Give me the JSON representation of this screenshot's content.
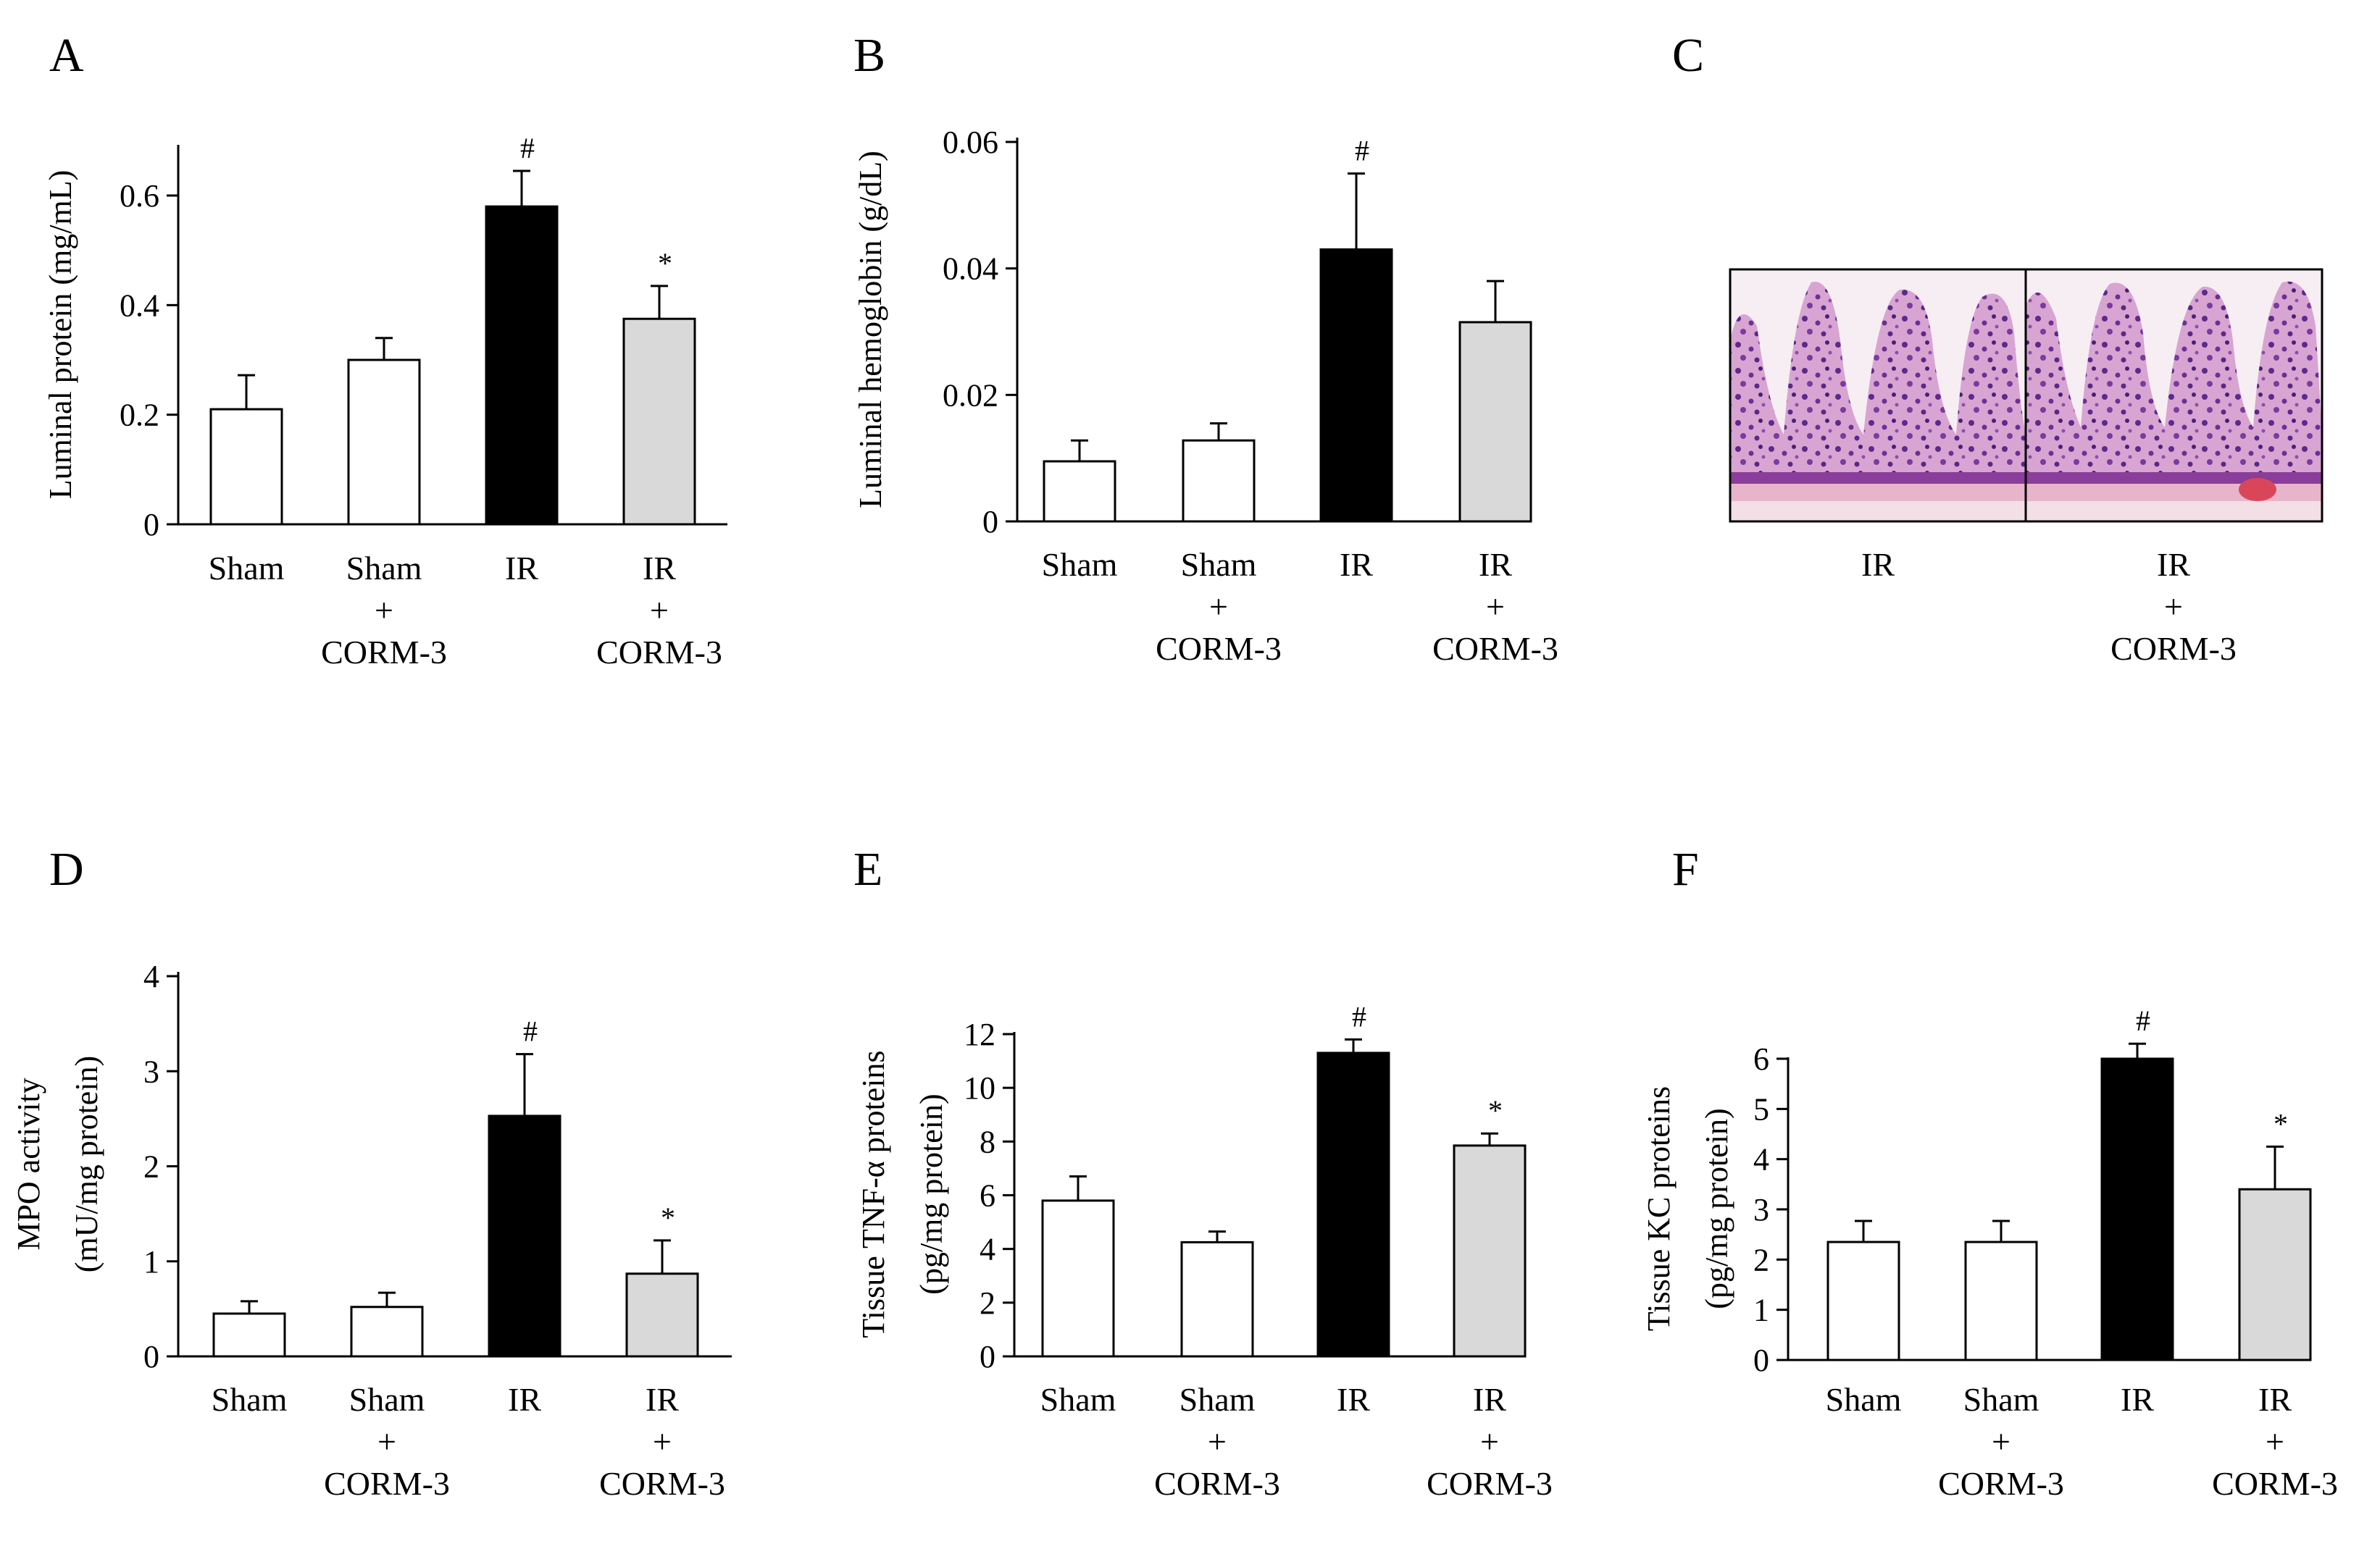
{
  "colors": {
    "open": "#ffffff",
    "black": "#000000",
    "grey": "#d9d9d9",
    "stroke": "#000000"
  },
  "chart_data": [
    {
      "panel": "A",
      "type": "bar",
      "ylabel_lines": [
        "Luminal protein (mg/mL)"
      ],
      "ylim": [
        0,
        0.7
      ],
      "yticks": [
        0,
        0.2,
        0.4,
        0.6
      ],
      "ytick_labels": [
        "0",
        "0.2",
        "0.4",
        "0.6"
      ],
      "categories": [
        [
          "Sham"
        ],
        [
          "Sham",
          "+",
          "CORM-3"
        ],
        [
          "IR"
        ],
        [
          "IR",
          "+",
          "CORM-3"
        ]
      ],
      "values": [
        0.21,
        0.3,
        0.58,
        0.375
      ],
      "errors": [
        0.062,
        0.04,
        0.065,
        0.06
      ],
      "fills": [
        "open",
        "open",
        "black",
        "grey"
      ],
      "sig": [
        "",
        "",
        "#",
        "*"
      ]
    },
    {
      "panel": "B",
      "type": "bar",
      "ylabel_lines": [
        "Luminal hemoglobin (g/dL)"
      ],
      "ylim": [
        0,
        0.06
      ],
      "yticks": [
        0,
        0.02,
        0.04,
        0.06
      ],
      "ytick_labels": [
        "0",
        "0.02",
        "0.04",
        "0.06"
      ],
      "categories": [
        [
          "Sham"
        ],
        [
          "Sham",
          "+",
          "CORM-3"
        ],
        [
          "IR"
        ],
        [
          "IR",
          "+",
          "CORM-3"
        ]
      ],
      "values": [
        0.0095,
        0.0128,
        0.043,
        0.0315
      ],
      "errors": [
        0.0033,
        0.0027,
        0.012,
        0.0065
      ],
      "fills": [
        "open",
        "open",
        "black",
        "grey"
      ],
      "sig": [
        "",
        "",
        "#",
        ""
      ]
    },
    {
      "panel": "D",
      "type": "bar",
      "ylabel_lines": [
        "MPO activity",
        "(mU/mg protein)"
      ],
      "ylim": [
        0,
        4
      ],
      "yticks": [
        0,
        1,
        2,
        3,
        4
      ],
      "ytick_labels": [
        "0",
        "1",
        "2",
        "3",
        "4"
      ],
      "categories": [
        [
          "Sham"
        ],
        [
          "Sham",
          "+",
          "CORM-3"
        ],
        [
          "IR"
        ],
        [
          "IR",
          "+",
          "CORM-3"
        ]
      ],
      "values": [
        0.45,
        0.52,
        2.53,
        0.87
      ],
      "errors": [
        0.13,
        0.15,
        0.65,
        0.35
      ],
      "fills": [
        "open",
        "open",
        "black",
        "grey"
      ],
      "sig": [
        "",
        "",
        "#",
        "*"
      ]
    },
    {
      "panel": "E",
      "type": "bar",
      "ylabel_lines": [
        "Tissue TNF-α proteins",
        "(pg/mg protein)"
      ],
      "ylim": [
        0,
        12
      ],
      "yticks": [
        0,
        2,
        4,
        6,
        8,
        10,
        12
      ],
      "ytick_labels": [
        "0",
        "2",
        "4",
        "6",
        "8",
        "10",
        "12"
      ],
      "categories": [
        [
          "Sham"
        ],
        [
          "Sham",
          "+",
          "CORM-3"
        ],
        [
          "IR"
        ],
        [
          "IR",
          "+",
          "CORM-3"
        ]
      ],
      "values": [
        5.8,
        4.25,
        11.3,
        7.85
      ],
      "errors": [
        0.9,
        0.4,
        0.5,
        0.45
      ],
      "fills": [
        "open",
        "open",
        "black",
        "grey"
      ],
      "sig": [
        "",
        "",
        "#",
        "*"
      ]
    },
    {
      "panel": "F",
      "type": "bar",
      "ylabel_lines": [
        "Tissue KC proteins",
        "(pg/mg protein)"
      ],
      "ylim": [
        0,
        6
      ],
      "yticks": [
        0,
        1,
        2,
        3,
        4,
        5,
        6
      ],
      "ytick_labels": [
        "0",
        "1",
        "2",
        "3",
        "4",
        "5",
        "6"
      ],
      "categories": [
        [
          "Sham"
        ],
        [
          "Sham",
          "+",
          "CORM-3"
        ],
        [
          "IR"
        ],
        [
          "IR",
          "+",
          "CORM-3"
        ]
      ],
      "values": [
        2.35,
        2.35,
        6.0,
        3.4
      ],
      "errors": [
        0.42,
        0.42,
        0.3,
        0.85
      ],
      "fills": [
        "open",
        "open",
        "black",
        "grey"
      ],
      "sig": [
        "",
        "",
        "#",
        "*"
      ]
    }
  ],
  "histology": {
    "panel": "C",
    "left_caption": [
      "IR"
    ],
    "right_caption": [
      "IR",
      "+",
      "CORM-3"
    ]
  }
}
